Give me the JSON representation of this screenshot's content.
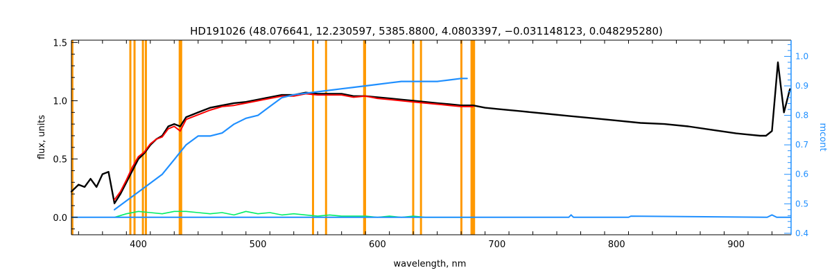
{
  "chart_data": {
    "type": "line",
    "title": "HD191026    (48.076641, 12.230597, 5385.8800, 4.0803397, −0.031148123, 0.048295280)",
    "xlabel": "wavelength, nm",
    "ylabel": "flux, units",
    "y2label": "mcont",
    "xlim": [
      344,
      946
    ],
    "ylim": [
      -0.15,
      1.52
    ],
    "y2lim": [
      0.395,
      1.055
    ],
    "x_ticks": [
      400,
      500,
      600,
      700,
      800,
      900
    ],
    "y_ticks": [
      0.0,
      0.5,
      1.0,
      1.5
    ],
    "y_tick_labels": [
      "0.0",
      "0.5",
      "1.0",
      "1.5"
    ],
    "y2_ticks": [
      0.4,
      0.5,
      0.6,
      0.7,
      0.8,
      0.9,
      1.0
    ],
    "y2_tick_labels": [
      "0.4",
      "0.5",
      "0.6",
      "0.7",
      "0.8",
      "0.9",
      "1.0"
    ],
    "colors": {
      "observed": "#000000",
      "model": "#ff0000",
      "residual": "#00ee66",
      "mcont": "#1f8fff",
      "mask": "#ff9900",
      "highlight": "#ffff00"
    },
    "mask_lines": [
      344.8,
      393.3,
      396.8,
      403.8,
      406.3,
      434.6,
      435.8,
      546.1,
      557.0,
      588.9,
      589.6,
      629.9,
      636.4,
      670.2,
      678.7,
      679.8,
      680.8
    ],
    "series": [
      {
        "key": "observed",
        "x": [
          344,
          350,
          355,
          360,
          365,
          370,
          375,
          380,
          385,
          390,
          395,
          400,
          405,
          410,
          415,
          420,
          425,
          430,
          435,
          440,
          445,
          450,
          460,
          470,
          480,
          490,
          500,
          510,
          520,
          530,
          540,
          550,
          560,
          570,
          580,
          590,
          600,
          610,
          620,
          630,
          640,
          650,
          660,
          670,
          680,
          690,
          700,
          720,
          740,
          760,
          780,
          800,
          820,
          840,
          860,
          880,
          900,
          910,
          920,
          925,
          930,
          935,
          940,
          945
        ],
        "y": [
          0.22,
          0.28,
          0.26,
          0.33,
          0.26,
          0.37,
          0.39,
          0.12,
          0.2,
          0.3,
          0.4,
          0.5,
          0.55,
          0.62,
          0.67,
          0.7,
          0.78,
          0.8,
          0.78,
          0.86,
          0.88,
          0.9,
          0.94,
          0.96,
          0.98,
          0.99,
          1.01,
          1.03,
          1.05,
          1.05,
          1.07,
          1.06,
          1.06,
          1.06,
          1.04,
          1.04,
          1.03,
          1.02,
          1.01,
          1.0,
          0.99,
          0.98,
          0.97,
          0.96,
          0.96,
          0.94,
          0.93,
          0.91,
          0.89,
          0.87,
          0.85,
          0.83,
          0.81,
          0.8,
          0.78,
          0.75,
          0.72,
          0.71,
          0.7,
          0.7,
          0.74,
          1.33,
          0.9,
          1.1
        ]
      },
      {
        "key": "model",
        "x": [
          380,
          385,
          390,
          395,
          400,
          405,
          410,
          415,
          420,
          425,
          430,
          435,
          440,
          445,
          450,
          460,
          470,
          480,
          490,
          500,
          510,
          520,
          530,
          540,
          550,
          560,
          570,
          580,
          590,
          600,
          610,
          620,
          630,
          640,
          650,
          660,
          670,
          680
        ],
        "y": [
          0.15,
          0.22,
          0.32,
          0.43,
          0.52,
          0.56,
          0.63,
          0.67,
          0.69,
          0.76,
          0.78,
          0.74,
          0.84,
          0.86,
          0.88,
          0.92,
          0.95,
          0.96,
          0.98,
          1.0,
          1.02,
          1.04,
          1.04,
          1.06,
          1.05,
          1.05,
          1.05,
          1.03,
          1.04,
          1.02,
          1.01,
          1.0,
          0.99,
          0.98,
          0.97,
          0.96,
          0.95,
          0.95
        ]
      },
      {
        "key": "residual",
        "x": [
          380,
          390,
          400,
          410,
          420,
          430,
          440,
          450,
          460,
          470,
          480,
          490,
          500,
          510,
          520,
          530,
          540,
          550,
          560,
          570,
          580,
          590,
          600,
          610,
          620,
          630,
          640,
          650,
          660,
          670,
          680
        ],
        "y": [
          0.0,
          0.03,
          0.05,
          0.04,
          0.03,
          0.05,
          0.05,
          0.04,
          0.03,
          0.04,
          0.02,
          0.05,
          0.03,
          0.04,
          0.02,
          0.03,
          0.02,
          0.01,
          0.02,
          0.01,
          0.01,
          0.01,
          0.0,
          0.01,
          0.0,
          0.01,
          0.0,
          0.0,
          0.0,
          0.0,
          0.0
        ]
      },
      {
        "key": "mcont",
        "axis": "right",
        "x": [
          380,
          390,
          400,
          410,
          420,
          430,
          440,
          450,
          460,
          470,
          480,
          490,
          500,
          510,
          520,
          530,
          540,
          550,
          560,
          570,
          580,
          590,
          600,
          610,
          620,
          630,
          640,
          650,
          660,
          670,
          675
        ],
        "y": [
          0.48,
          0.51,
          0.54,
          0.57,
          0.6,
          0.65,
          0.7,
          0.73,
          0.73,
          0.74,
          0.77,
          0.79,
          0.8,
          0.83,
          0.86,
          0.87,
          0.875,
          0.88,
          0.885,
          0.89,
          0.895,
          0.9,
          0.905,
          0.91,
          0.915,
          0.915,
          0.915,
          0.915,
          0.92,
          0.925,
          0.925
        ]
      }
    ],
    "baselines": [
      {
        "key": "mcont",
        "x": [
          344,
          380,
          680,
          760,
          762,
          764,
          810,
          812,
          926,
          930,
          934,
          946
        ],
        "y": [
          0.0,
          0.0,
          0.0,
          0.0,
          0.02,
          0.0,
          0.0,
          0.01,
          0.0,
          0.02,
          0.0,
          0.0
        ]
      }
    ]
  }
}
